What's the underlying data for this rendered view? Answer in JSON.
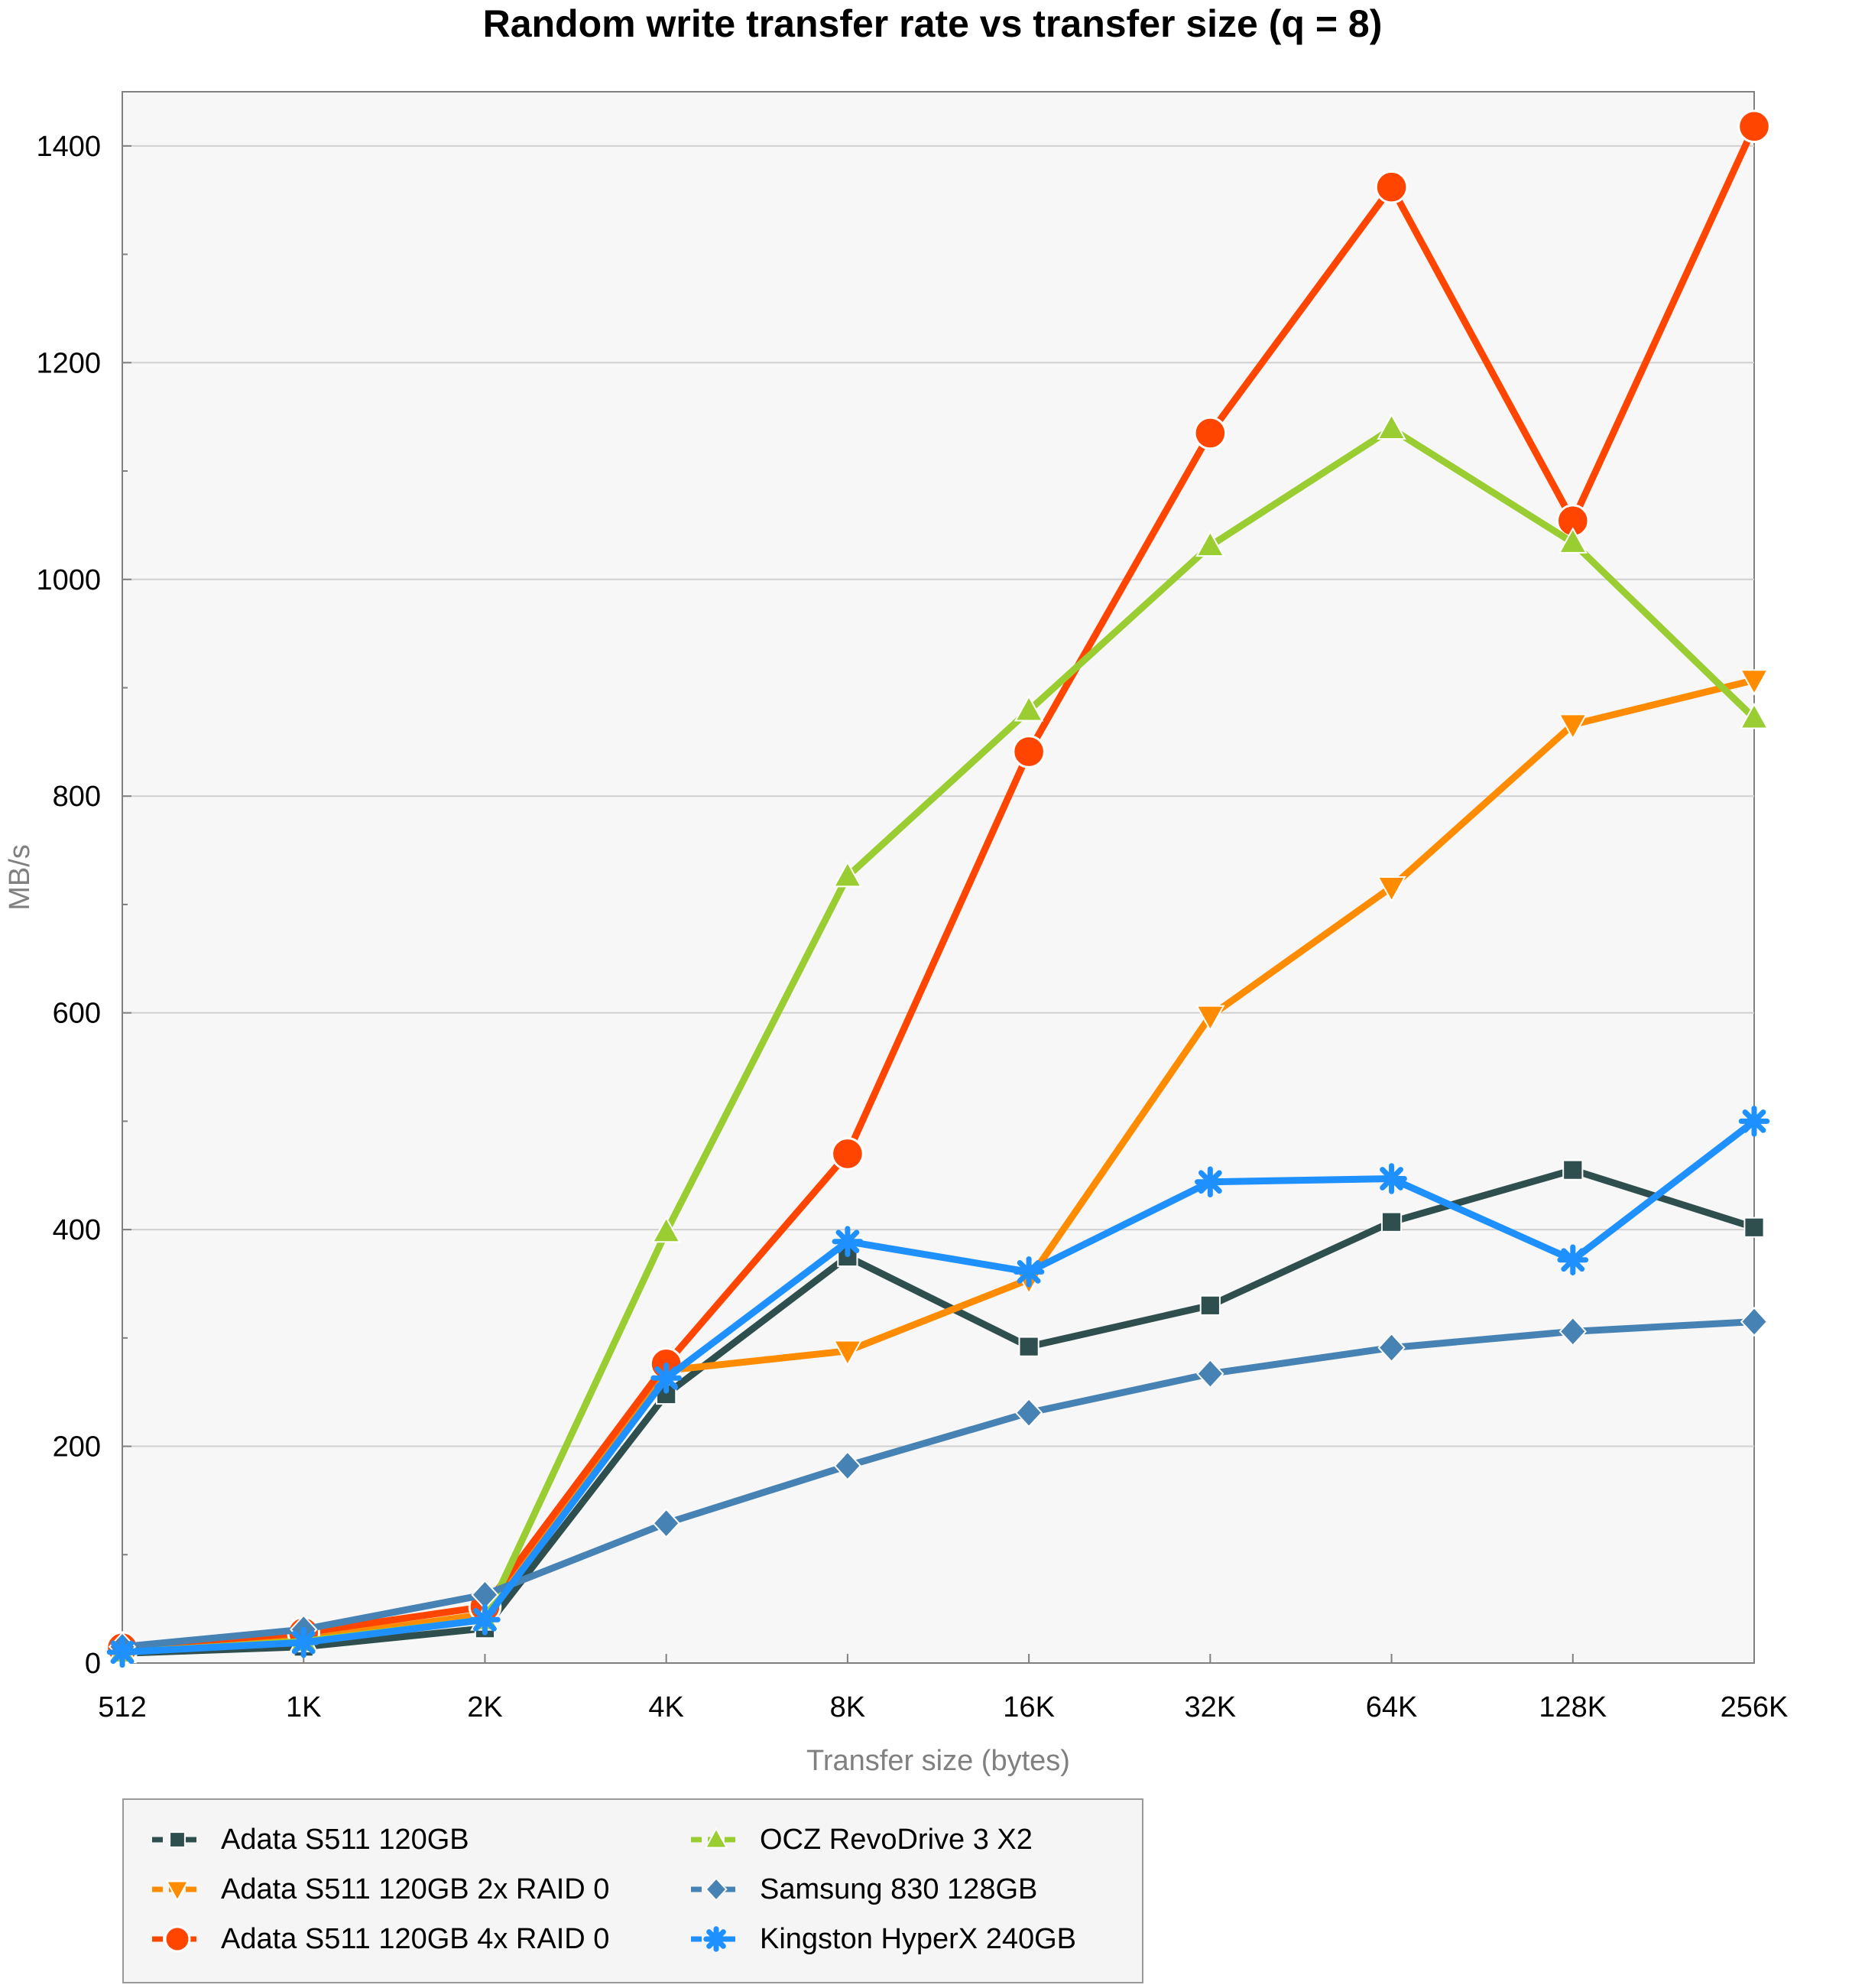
{
  "chart_data": {
    "type": "line",
    "title": "Random write transfer rate vs transfer size (q = 8)",
    "xlabel": "Transfer size (bytes)",
    "ylabel": "MB/s",
    "categories": [
      "512",
      "1K",
      "2K",
      "4K",
      "8K",
      "16K",
      "32K",
      "64K",
      "128K",
      "256K"
    ],
    "ylim": [
      0,
      1450
    ],
    "yticks": [
      "0",
      "200",
      "400",
      "600",
      "800",
      "1000",
      "1200",
      "1400"
    ],
    "grid": true,
    "legend_position": "bottom-left",
    "series": [
      {
        "name": "Adata S511 120GB",
        "color": "#2f4f4f",
        "marker": "square",
        "values": [
          9,
          15,
          32,
          248,
          375,
          292,
          330,
          407,
          455,
          402
        ]
      },
      {
        "name": "Adata S511 120GB 2x RAID 0",
        "color": "#ff8c00",
        "marker": "triangle-down",
        "values": [
          12,
          22,
          45,
          270,
          288,
          354,
          597,
          716,
          866,
          907
        ]
      },
      {
        "name": "Adata S511 120GB 4x RAID 0",
        "color": "#ff4500",
        "marker": "circle",
        "values": [
          14,
          28,
          52,
          276,
          470,
          841,
          1135,
          1362,
          1054,
          1418
        ]
      },
      {
        "name": "OCZ RevoDrive 3 X2",
        "color": "#9acd32",
        "marker": "triangle-up",
        "values": [
          10,
          20,
          40,
          398,
          726,
          879,
          1031,
          1139,
          1034,
          872
        ]
      },
      {
        "name": "Samsung 830 128GB",
        "color": "#4682b4",
        "marker": "diamond",
        "values": [
          15,
          31,
          63,
          129,
          182,
          231,
          267,
          291,
          306,
          315
        ]
      },
      {
        "name": "Kingston HyperX 240GB",
        "color": "#1e90ff",
        "marker": "star",
        "values": [
          10,
          19,
          40,
          263,
          389,
          361,
          444,
          447,
          372,
          500
        ]
      }
    ]
  }
}
